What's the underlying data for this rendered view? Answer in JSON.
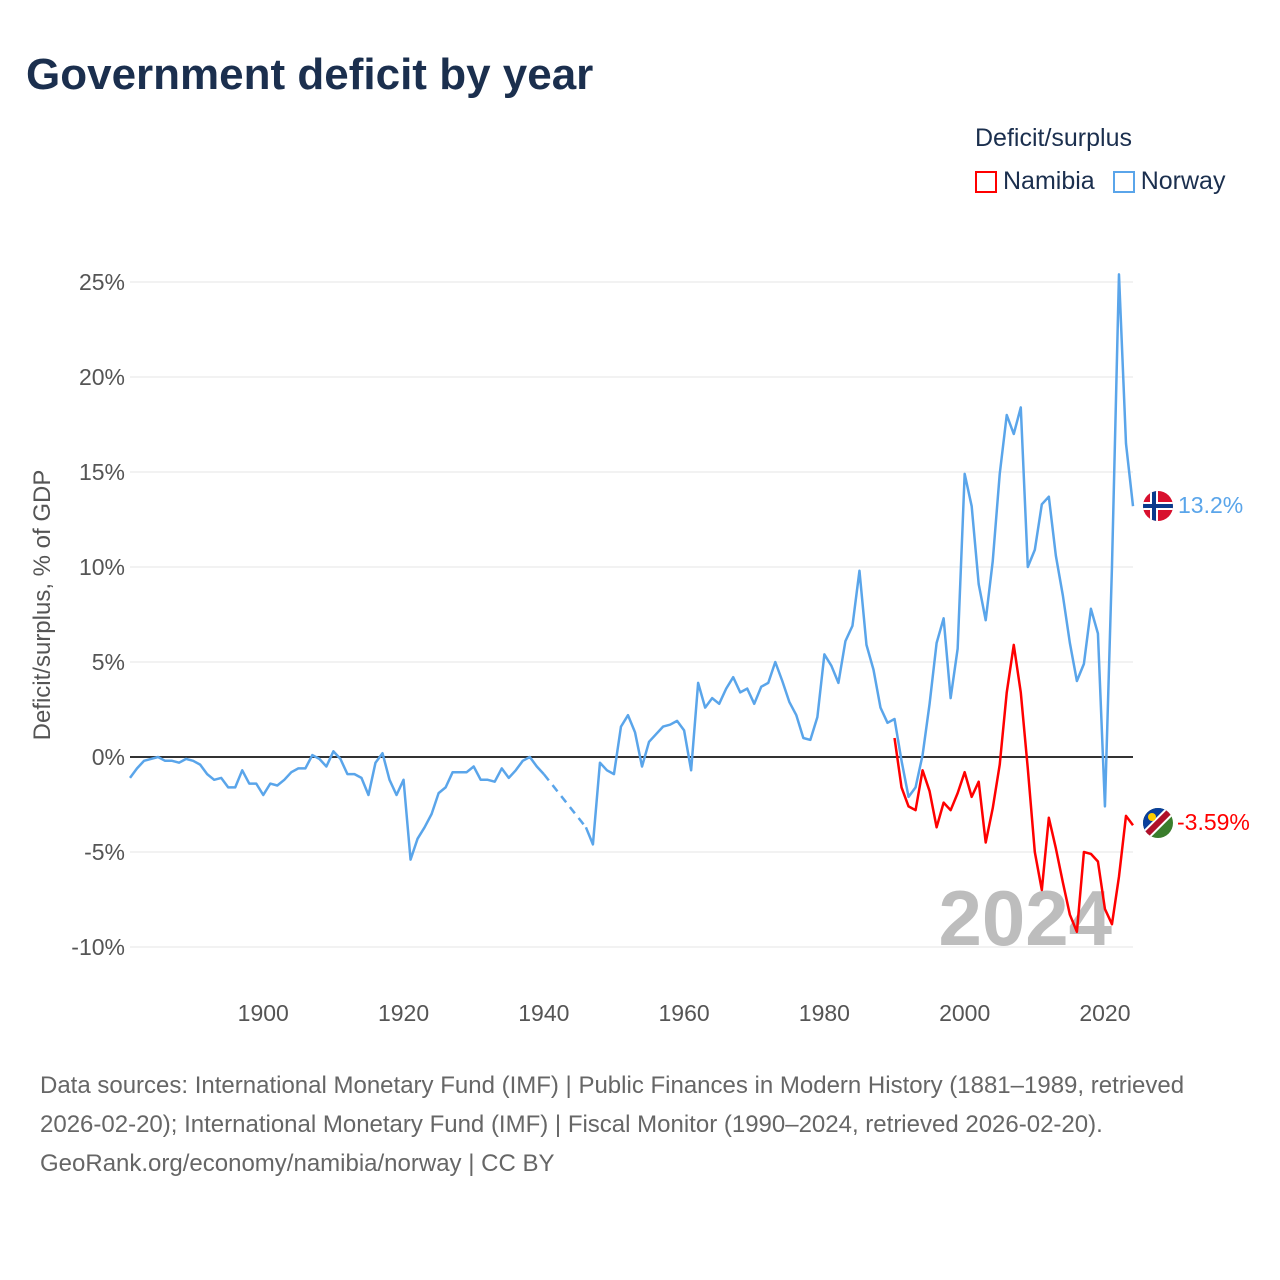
{
  "title": "Government deficit by year",
  "legend": {
    "title": "Deficit/surplus",
    "items": [
      {
        "name": "Namibia",
        "color": "#ff0000"
      },
      {
        "name": "Norway",
        "color": "#5aa5ea"
      }
    ]
  },
  "footer": {
    "sources": "Data sources: International Monetary Fund (IMF) | Public Finances in Modern History (1881–1989, retrieved 2026-02-20); International Monetary Fund (IMF) | Fiscal Monitor (1990–2024, retrieved 2026-02-20).",
    "credit": "GeoRank.org/economy/namibia/norway | CC BY"
  },
  "chart_data": {
    "type": "line",
    "title": "Government deficit by year",
    "xlabel": "",
    "ylabel": "Deficit/surplus, % of GDP",
    "xlim": [
      1881,
      2024
    ],
    "ylim": [
      -10,
      25
    ],
    "yticks": [
      -10,
      -5,
      0,
      5,
      10,
      15,
      20,
      25
    ],
    "ytick_labels": [
      "-10%",
      "-5%",
      "0%",
      "5%",
      "10%",
      "15%",
      "20%",
      "25%"
    ],
    "xticks": [
      1900,
      1920,
      1940,
      1960,
      1980,
      2000,
      2020
    ],
    "xtick_labels": [
      "1900",
      "1920",
      "1940",
      "1960",
      "1980",
      "2000",
      "2020"
    ],
    "current_year_label": "2024",
    "end_labels": {
      "Norway": "13.2%",
      "Namibia": "-3.59%"
    },
    "grid": true,
    "legend_position": "top-right",
    "series": [
      {
        "name": "Norway",
        "color": "#5aa5ea",
        "start_year": 1881,
        "values": [
          -1.1,
          -0.6,
          -0.2,
          -0.1,
          0.0,
          -0.2,
          -0.2,
          -0.3,
          -0.1,
          -0.2,
          -0.4,
          -0.9,
          -1.2,
          -1.1,
          -1.6,
          -1.6,
          -0.7,
          -1.4,
          -1.4,
          -2.0,
          -1.4,
          -1.5,
          -1.2,
          -0.8,
          -0.6,
          -0.6,
          0.1,
          -0.1,
          -0.5,
          0.3,
          -0.1,
          -0.9,
          -0.9,
          -1.1,
          -2.0,
          -0.3,
          0.2,
          -1.2,
          -2.0,
          -1.2,
          -5.4,
          -4.3,
          -3.7,
          -3.0,
          -1.9,
          -1.6,
          -0.8,
          -0.8,
          -0.8,
          -0.5,
          -1.2,
          -1.2,
          -1.3,
          -0.6,
          -1.1,
          -0.7,
          -0.2,
          0.0,
          -0.5,
          -0.9,
          null,
          null,
          null,
          null,
          null,
          -3.7,
          -4.6,
          -0.3,
          -0.7,
          -0.9,
          1.6,
          2.2,
          1.3,
          -0.5,
          0.8,
          1.2,
          1.6,
          1.7,
          1.9,
          1.4,
          -0.7,
          3.9,
          2.6,
          3.1,
          2.8,
          3.6,
          4.2,
          3.4,
          3.6,
          2.8,
          3.7,
          3.9,
          5.0,
          4.0,
          2.9,
          2.2,
          1.0,
          0.9,
          2.1,
          5.4,
          4.8,
          3.9,
          6.1,
          6.9,
          9.8,
          5.9,
          4.6,
          2.6,
          1.8,
          2.0,
          -0.2,
          -2.1,
          -1.6,
          0.1,
          2.8,
          6.0,
          7.3,
          3.1,
          5.7,
          14.9,
          13.2,
          9.1,
          7.2,
          10.3,
          14.9,
          18.0,
          17.0,
          18.4,
          10.0,
          10.9,
          13.3,
          13.7,
          10.6,
          8.5,
          6.0,
          4.0,
          4.9,
          7.8,
          6.5,
          -2.6,
          10.0,
          25.4,
          16.5,
          13.2
        ]
      },
      {
        "name": "Namibia",
        "color": "#ff0000",
        "start_year": 1990,
        "values": [
          1.0,
          -1.6,
          -2.6,
          -2.8,
          -0.7,
          -1.8,
          -3.7,
          -2.4,
          -2.8,
          -1.9,
          -0.8,
          -2.1,
          -1.3,
          -4.5,
          -2.7,
          -0.4,
          3.4,
          5.9,
          3.4,
          -0.6,
          -5.0,
          -7.0,
          -3.2,
          -4.8,
          -6.6,
          -8.3,
          -9.2,
          -5.0,
          -5.1,
          -5.5,
          -8.0,
          -8.8,
          -6.3,
          -3.1,
          -3.59
        ]
      }
    ]
  }
}
